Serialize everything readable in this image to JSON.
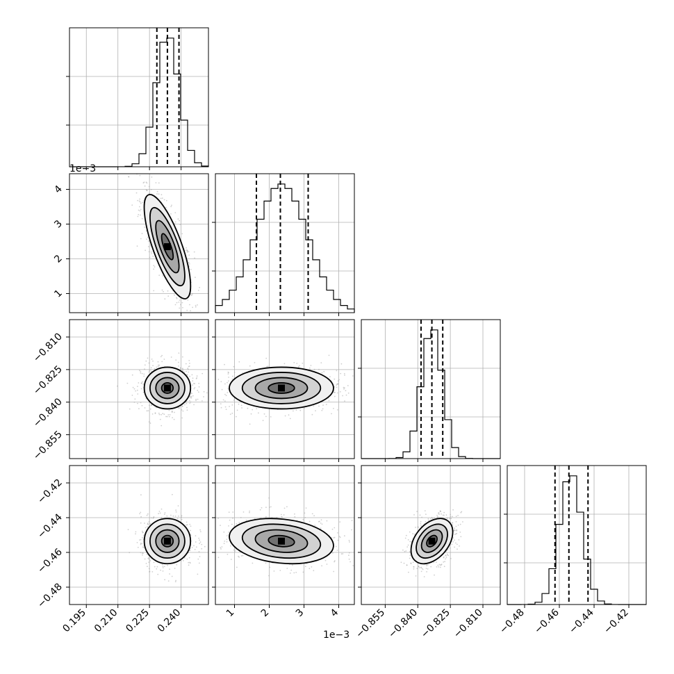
{
  "chart_data": {
    "type": "corner",
    "title": "",
    "parameters": [
      {
        "key": "p0",
        "label": "",
        "range": [
          0.187,
          0.253
        ],
        "ticks": [
          0.195,
          0.21,
          0.225,
          0.24
        ],
        "tick_labels": [
          "0.195",
          "0.210",
          "0.225",
          "0.240"
        ],
        "offset_text": "",
        "mean": 0.2335,
        "sd": 0.0055,
        "quantiles": [
          0.2285,
          0.2335,
          0.239
        ]
      },
      {
        "key": "p1",
        "label": "",
        "range": [
          0.00045,
          0.00445
        ],
        "ticks": [
          0.001,
          0.002,
          0.003,
          0.004
        ],
        "tick_labels": [
          "1",
          "2",
          "3",
          "4"
        ],
        "offset_text": "1e−3",
        "mean": 0.00235,
        "sd": 0.00075,
        "quantiles": [
          0.00163,
          0.00232,
          0.00312
        ]
      },
      {
        "key": "p2",
        "label": "",
        "range": [
          -0.866,
          -0.802
        ],
        "ticks": [
          -0.855,
          -0.84,
          -0.825,
          -0.81
        ],
        "tick_labels": [
          "−0.855",
          "−0.840",
          "−0.825",
          "−0.810"
        ],
        "offset_text": "",
        "mean": -0.8335,
        "sd": 0.0048,
        "quantiles": [
          -0.8385,
          -0.8335,
          -0.8285
        ]
      },
      {
        "key": "p3",
        "label": "",
        "range": [
          -0.49,
          -0.41
        ],
        "ticks": [
          -0.48,
          -0.46,
          -0.44,
          -0.42
        ],
        "tick_labels": [
          "−0.48",
          "−0.46",
          "−0.44",
          "−0.42"
        ],
        "offset_text": "",
        "mean": -0.4535,
        "sd": 0.0065,
        "quantiles": [
          -0.4625,
          -0.4545,
          -0.4435
        ]
      }
    ],
    "correlations": [
      [
        1,
        -0.75,
        0.0,
        0.0
      ],
      [
        -0.75,
        1,
        0.0,
        -0.2
      ],
      [
        0.0,
        0.0,
        1,
        0.4
      ],
      [
        0.0,
        -0.2,
        0.4,
        1
      ]
    ],
    "histogram_bins": 20,
    "contour_levels_sigma": [
      0.5,
      1.0,
      1.5,
      2.0
    ],
    "quantiles_shown": [
      0.16,
      0.5,
      0.84
    ],
    "grid": true,
    "scatter_samples": true
  }
}
